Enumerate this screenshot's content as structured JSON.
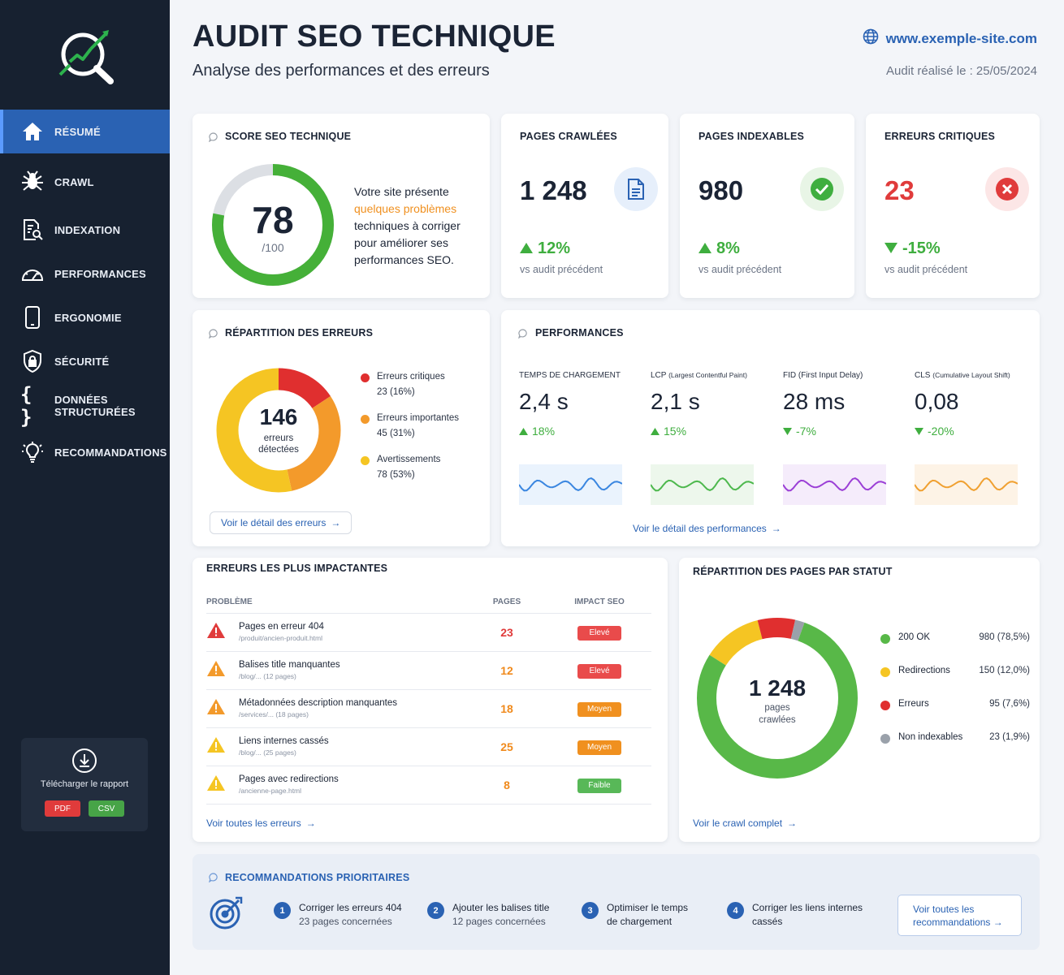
{
  "sidebar": {
    "items": [
      {
        "label": "RÉSUMÉ",
        "icon": "home-icon"
      },
      {
        "label": "CRAWL",
        "icon": "spider-icon"
      },
      {
        "label": "INDEXATION",
        "icon": "document-search-icon"
      },
      {
        "label": "PERFORMANCES",
        "icon": "gauge-icon"
      },
      {
        "label": "ERGONOMIE",
        "icon": "mobile-icon"
      },
      {
        "label": "SÉCURITÉ",
        "icon": "shield-icon"
      },
      {
        "label_line1": "DONNÉES",
        "label_line2": "STRUCTURÉES",
        "icon": "braces-icon"
      },
      {
        "label": "RECOMMANDATIONS",
        "icon": "lightbulb-icon"
      }
    ],
    "download": {
      "label": "Télécharger le rapport",
      "pdf": "PDF",
      "csv": "CSV"
    }
  },
  "header": {
    "title": "AUDIT SEO TECHNIQUE",
    "subtitle": "Analyse des performances et des erreurs",
    "site_url": "www.exemple-site.com",
    "audit_date": "Audit réalisé le : 25/05/2024"
  },
  "score": {
    "title": "SCORE SEO TECHNIQUE",
    "value": "78",
    "max": "/100",
    "ratio": 0.78,
    "text_before": "Votre site présente",
    "text_highlight": "quelques problèmes",
    "text_after_1": "techniques à corriger",
    "text_after_2": "pour améliorer ses",
    "text_after_3": "performances SEO."
  },
  "stats": [
    {
      "title": "PAGES CRAWLÉES",
      "value": "1 248",
      "change": "12%",
      "direction": "up",
      "sub": "vs audit précédent",
      "icon": "document-icon",
      "color": "#1b2435"
    },
    {
      "title": "PAGES INDEXABLES",
      "value": "980",
      "change": "8%",
      "direction": "up",
      "sub": "vs audit précédent",
      "icon": "check-circle-icon",
      "color": "#1b2435"
    },
    {
      "title": "ERREURS CRITIQUES",
      "value": "23",
      "change": "-15%",
      "direction": "down",
      "sub": "vs audit précédent",
      "icon": "x-circle-icon",
      "color": "#e03b3b"
    }
  ],
  "errors_breakdown": {
    "title": "RÉPARTITION DES ERREURS",
    "total": "146",
    "total_label_1": "erreurs",
    "total_label_2": "détectées",
    "items": [
      {
        "label": "Erreurs critiques",
        "detail": "23 (16%)",
        "value": 23,
        "color": "#e02f2f"
      },
      {
        "label": "Erreurs importantes",
        "detail": "45 (31%)",
        "value": 45,
        "color": "#f39a2b"
      },
      {
        "label": "Avertissements",
        "detail": "78 (53%)",
        "value": 78,
        "color": "#f5c523"
      }
    ],
    "link": "Voir le détail des erreurs"
  },
  "performances": {
    "title": "PERFORMANCES",
    "metrics": [
      {
        "label": "TEMPS DE CHARGEMENT",
        "label_small": "",
        "value": "2,4 s",
        "change": "18%",
        "direction": "up",
        "color": "#3a86e0",
        "bg": "#eaf3fd"
      },
      {
        "label": "LCP ",
        "label_small": "(Largest Contentful Paint)",
        "value": "2,1 s",
        "change": "15%",
        "direction": "up",
        "color": "#4db84d",
        "bg": "#edf7ec"
      },
      {
        "label": "FID (First Input Delay)",
        "label_small": "",
        "value": "28 ms",
        "change": "-7%",
        "direction": "down",
        "color": "#9b3fd6",
        "bg": "#f5ecfb"
      },
      {
        "label": "CLS ",
        "label_small": "(Cumulative Layout Shift)",
        "value": "0,08",
        "change": "-20%",
        "direction": "down",
        "color": "#f0a030",
        "bg": "#fdf3e6"
      }
    ],
    "link": "Voir le détail des performances"
  },
  "top_errors": {
    "title": "ERREURS LES PLUS IMPACTANTES",
    "headers": {
      "problem": "PROBLÈME",
      "pages": "PAGES",
      "impact": "IMPACT SEO"
    },
    "rows": [
      {
        "name": "Pages en erreur 404",
        "path": "/produit/ancien-produit.html",
        "pages": "23",
        "impact": "Elevé",
        "icon_color": "#e03b3b",
        "count_color": "#e03b3b",
        "badge_color": "#e94b4b"
      },
      {
        "name": "Balises title manquantes",
        "path": "/blog/... (12 pages)",
        "pages": "12",
        "impact": "Elevé",
        "icon_color": "#f39a2b",
        "count_color": "#f08a1c",
        "badge_color": "#e94b4b"
      },
      {
        "name": "Métadonnées description manquantes",
        "path": "/services/... (18 pages)",
        "pages": "18",
        "impact": "Moyen",
        "icon_color": "#f39a2b",
        "count_color": "#f08a1c",
        "badge_color": "#f0901f"
      },
      {
        "name": "Liens internes cassés",
        "path": "/blog/... (25 pages)",
        "pages": "25",
        "impact": "Moyen",
        "icon_color": "#f5c523",
        "count_color": "#f08a1c",
        "badge_color": "#f0901f"
      },
      {
        "name": "Pages avec redirections",
        "path": "/ancienne-page.html",
        "pages": "8",
        "impact": "Faible",
        "icon_color": "#f5c523",
        "count_color": "#f08a1c",
        "badge_color": "#58b858"
      }
    ],
    "link": "Voir toutes les erreurs"
  },
  "status": {
    "title": "RÉPARTITION DES PAGES PAR STATUT",
    "total": "1 248",
    "total_label_1": "pages",
    "total_label_2": "crawlées",
    "items": [
      {
        "label": "200 OK",
        "value": "980 (78,5%)",
        "pct": 78.5,
        "color": "#58b848"
      },
      {
        "label": "Redirections",
        "value": "150 (12,0%)",
        "pct": 12.0,
        "color": "#f5c523"
      },
      {
        "label": "Erreurs",
        "value": "95 (7,6%)",
        "pct": 7.6,
        "color": "#e02f2f"
      },
      {
        "label": "Non indexables",
        "value": "23 (1,9%)",
        "pct": 1.9,
        "color": "#9aa1aa"
      }
    ],
    "link": "Voir le crawl complet"
  },
  "recommendations": {
    "title": "RECOMMANDATIONS PRIORITAIRES",
    "items": [
      {
        "num": "1",
        "line1": "Corriger les erreurs 404",
        "line2": "23 pages concernées"
      },
      {
        "num": "2",
        "line1": "Ajouter les balises title",
        "line2": "12 pages concernées"
      },
      {
        "num": "3",
        "line1": "Optimiser le temps",
        "line2": "de chargement"
      },
      {
        "num": "4",
        "line1": "Corriger les liens internes",
        "line2": "cassés"
      }
    ],
    "button": "Voir toutes les recommandations"
  },
  "colors": {
    "accent": "#2a62b3",
    "sidebar": "#172130",
    "active": "#2a62b3",
    "up": "#3fae3f",
    "down": "#3fae3f",
    "critical": "#e03b3b"
  }
}
